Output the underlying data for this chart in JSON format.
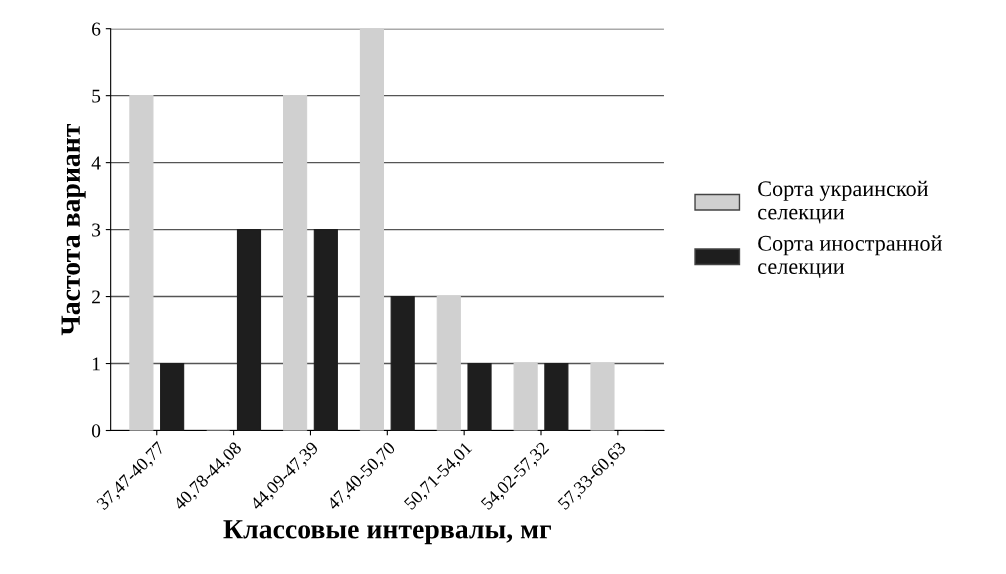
{
  "chart_data": {
    "type": "bar",
    "xlabel": "Классовые интервалы, мг",
    "ylabel": "Частота вариант",
    "categories": [
      "37,47-40,77",
      "40,78-44,08",
      "44,09-47,39",
      "47,40-50,70",
      "50,71-54,01",
      "54,02-57,32",
      "57,33-60,63"
    ],
    "series": [
      {
        "name": "Сорта украинской селекции",
        "color": "#d0d0d0",
        "values": [
          5,
          0,
          5,
          6,
          2,
          1,
          1
        ]
      },
      {
        "name": "Сорта иностранной селекции",
        "color": "#1e1e1e",
        "values": [
          1,
          3,
          3,
          2,
          1,
          1,
          0
        ]
      }
    ],
    "ylim": [
      0,
      6
    ],
    "yticks": [
      0,
      1,
      2,
      3,
      4,
      5,
      6
    ],
    "grid": "y",
    "legend": "right"
  }
}
